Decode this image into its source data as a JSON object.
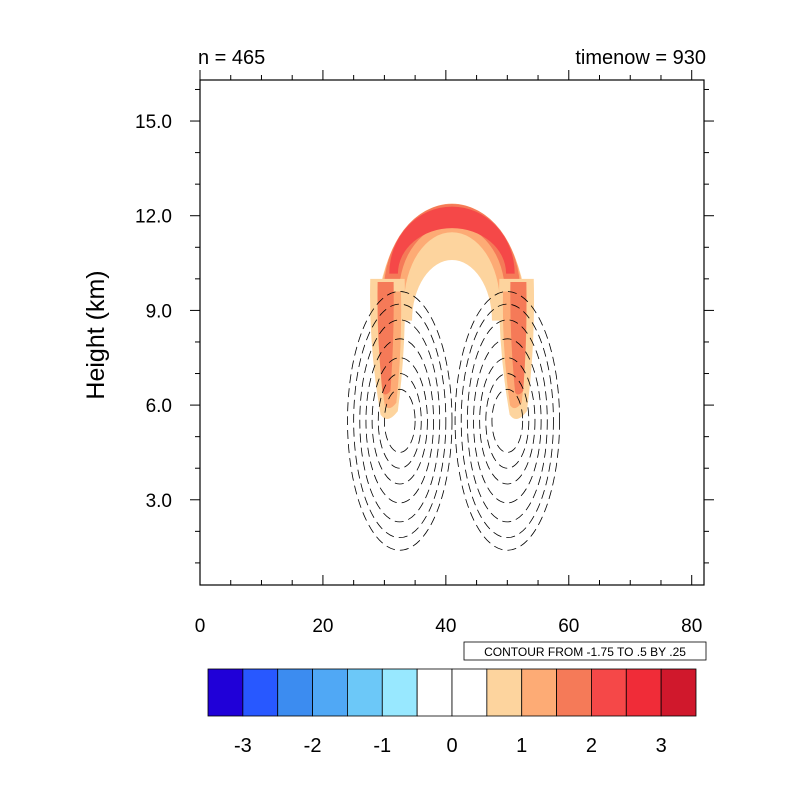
{
  "chart_data": {
    "type": "contour",
    "title_left": "n = 465",
    "title_right": "timenow = 930",
    "ylabel": "Height (km)",
    "xlabel": "",
    "xlim": [
      0,
      82
    ],
    "ylim": [
      0.3,
      16.3
    ],
    "x_ticks": [
      0,
      20,
      40,
      60,
      80
    ],
    "x_tick_labels": [
      "0",
      "20",
      "40",
      "60",
      "80"
    ],
    "y_ticks": [
      3,
      6,
      9,
      12,
      15
    ],
    "y_tick_labels": [
      "3.0",
      "6.0",
      "9.0",
      "12.0",
      "15.0"
    ],
    "contour_info": "CONTOUR FROM -1.75 TO .5 BY .25",
    "colorbar": {
      "levels": [
        -3.5,
        -3,
        -2.5,
        -2,
        -1.5,
        -1,
        -0.5,
        0,
        0.5,
        1,
        1.5,
        2,
        2.5,
        3,
        3.5
      ],
      "colors": [
        "#2000d8",
        "#2858ff",
        "#3c8cf0",
        "#50a8f5",
        "#6cc8f8",
        "#98e8ff",
        "#ffffff",
        "#ffffff",
        "#fdd49e",
        "#fdab75",
        "#f57a58",
        "#f54848",
        "#f02c38",
        "#d0182c"
      ],
      "tick_values": [
        -3,
        -2,
        -1,
        0,
        1,
        2,
        3
      ],
      "tick_labels": [
        "-3",
        "-2",
        "-1",
        "0",
        "1",
        "2",
        "3"
      ]
    },
    "fill_features": [
      {
        "level": 0.5,
        "color": "#fdd49e",
        "shape": "cap",
        "center_x": 41,
        "center_y": 10.3,
        "half_width": 12.2,
        "half_height": 2.95,
        "inner_half_width": 6.5,
        "inner_half_height": 1.6
      },
      {
        "level": 1.0,
        "color": "#fdab75",
        "shape": "cap",
        "center_x": 41,
        "center_y": 10.6,
        "half_width": 11.6,
        "half_height": 2.55,
        "inner_half_width": 7.8,
        "inner_half_height": 1.9
      },
      {
        "level": 1.5,
        "color": "#f57a58",
        "shape": "cap",
        "center_x": 41,
        "center_y": 10.8,
        "half_width": 11.1,
        "half_height": 2.25,
        "inner_half_width": 8.6,
        "inner_half_height": 1.8
      },
      {
        "level": 2.0,
        "color": "#f54848",
        "shape": "cap",
        "center_x": 41,
        "center_y": 11.1,
        "half_width": 10.2,
        "half_height": 1.7,
        "inner_half_width": 8.8,
        "inner_half_height": 1.2
      },
      {
        "level": 0.5,
        "color": "#fdd49e",
        "shape": "limb",
        "x": 30.5,
        "y_top": 10.0,
        "y_bottom": 5.7,
        "half_width": 2.8
      },
      {
        "level": 0.5,
        "color": "#fdd49e",
        "shape": "limb",
        "x": 51.5,
        "y_top": 10.0,
        "y_bottom": 5.7,
        "half_width": 2.8
      },
      {
        "level": 1.0,
        "color": "#fdab75",
        "shape": "limb",
        "x": 30.8,
        "y_top": 9.6,
        "y_bottom": 6.0,
        "half_width": 1.9
      },
      {
        "level": 1.0,
        "color": "#fdab75",
        "shape": "limb",
        "x": 51.2,
        "y_top": 9.6,
        "y_bottom": 6.0,
        "half_width": 1.9
      },
      {
        "level": 1.5,
        "color": "#f57a58",
        "shape": "limb",
        "x": 30.2,
        "y_top": 9.9,
        "y_bottom": 6.4,
        "half_width": 1.3
      },
      {
        "level": 1.5,
        "color": "#f57a58",
        "shape": "limb",
        "x": 51.8,
        "y_top": 9.9,
        "y_bottom": 6.4,
        "half_width": 1.3
      }
    ],
    "negative_contours": [
      {
        "center_x": 32.5,
        "center_y": 5.5,
        "rx": [
          2.5,
          3.5,
          4.5,
          5.5,
          6.5,
          7.5,
          8.5
        ],
        "ry": [
          1.0,
          1.5,
          2.0,
          2.6,
          3.2,
          3.7,
          4.1
        ]
      },
      {
        "center_x": 50.0,
        "center_y": 5.5,
        "rx": [
          2.5,
          3.5,
          4.5,
          5.5,
          6.5,
          7.5,
          8.5
        ],
        "ry": [
          1.0,
          1.5,
          2.0,
          2.6,
          3.2,
          3.7,
          4.1
        ]
      }
    ]
  }
}
